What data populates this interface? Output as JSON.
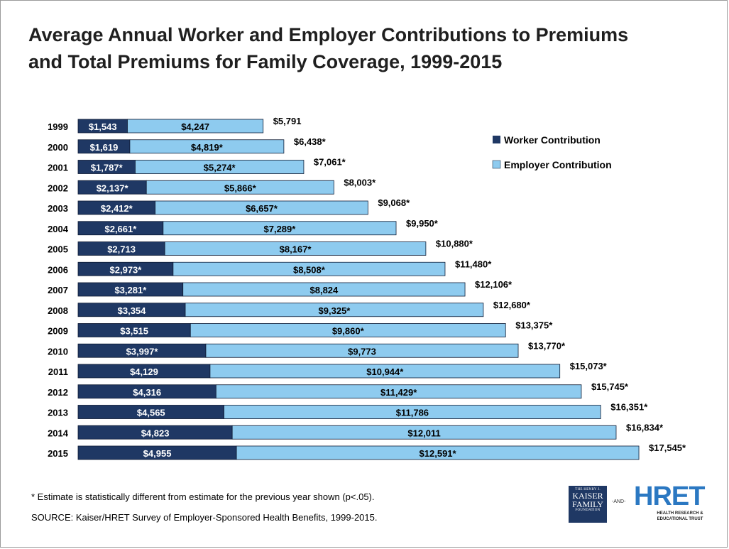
{
  "title_line1": "Average Annual Worker and Employer Contributions to Premiums",
  "title_line2": "and Total Premiums for Family Coverage, 1999-2015",
  "footnote": "* Estimate is statistically different from estimate for the previous year shown (p<.05).",
  "source": "SOURCE:  Kaiser/HRET Survey of Employer-Sponsored Health Benefits, 1999-2015.",
  "logos": {
    "kff_top": "THE HENRY J.",
    "kff_line1": "KAISER",
    "kff_line2": "FAMILY",
    "kff_bottom": "FOUNDATION",
    "and_text": "-AND-",
    "hret_name": "HRET",
    "hret_sub": "HEALTH RESEARCH & EDUCATIONAL TRUST"
  },
  "colors": {
    "worker": "#1f3864",
    "employer": "#8ecbef",
    "text": "#000000"
  },
  "chart_data": {
    "type": "bar",
    "orientation": "horizontal",
    "stacked": true,
    "title": "Average Annual Worker and Employer Contributions to Premiums and Total Premiums for Family Coverage, 1999-2015",
    "categories": [
      "1999",
      "2000",
      "2001",
      "2002",
      "2003",
      "2004",
      "2005",
      "2006",
      "2007",
      "2008",
      "2009",
      "2010",
      "2011",
      "2012",
      "2013",
      "2014",
      "2015"
    ],
    "series": [
      {
        "name": "Worker Contribution",
        "values": [
          1543,
          1619,
          1787,
          2137,
          2412,
          2661,
          2713,
          2973,
          3281,
          3354,
          3515,
          3997,
          4129,
          4316,
          4565,
          4823,
          4955
        ],
        "labels": [
          "$1,543",
          "$1,619",
          "$1,787*",
          "$2,137*",
          "$2,412*",
          "$2,661*",
          "$2,713",
          "$2,973*",
          "$3,281*",
          "$3,354",
          "$3,515",
          "$3,997*",
          "$4,129",
          "$4,316",
          "$4,565",
          "$4,823",
          "$4,955"
        ]
      },
      {
        "name": "Employer Contribution",
        "values": [
          4247,
          4819,
          5274,
          5866,
          6657,
          7289,
          8167,
          8508,
          8824,
          9325,
          9860,
          9773,
          10944,
          11429,
          11786,
          12011,
          12591
        ],
        "labels": [
          "$4,247",
          "$4,819*",
          "$5,274*",
          "$5,866*",
          "$6,657*",
          "$7,289*",
          "$8,167*",
          "$8,508*",
          "$8,824",
          "$9,325*",
          "$9,860*",
          "$9,773",
          "$10,944*",
          "$11,429*",
          "$11,786",
          "$12,011",
          "$12,591*"
        ]
      }
    ],
    "totals": [
      5791,
      6438,
      7061,
      8003,
      9068,
      9950,
      10880,
      11480,
      12106,
      12680,
      13375,
      13770,
      15073,
      15745,
      16351,
      16834,
      17545
    ],
    "total_labels": [
      "$5,791",
      "$6,438*",
      "$7,061*",
      "$8,003*",
      "$9,068*",
      "$9,950*",
      "$10,880*",
      "$11,480*",
      "$12,106*",
      "$12,680*",
      "$13,375*",
      "$13,770*",
      "$15,073*",
      "$15,745*",
      "$16,351*",
      "$16,834*",
      "$17,545*"
    ],
    "legend": [
      "Worker Contribution",
      "Employer Contribution"
    ],
    "legend_position": "top-right",
    "xlabel": "",
    "ylabel": "",
    "xlim": [
      0,
      17545
    ]
  }
}
